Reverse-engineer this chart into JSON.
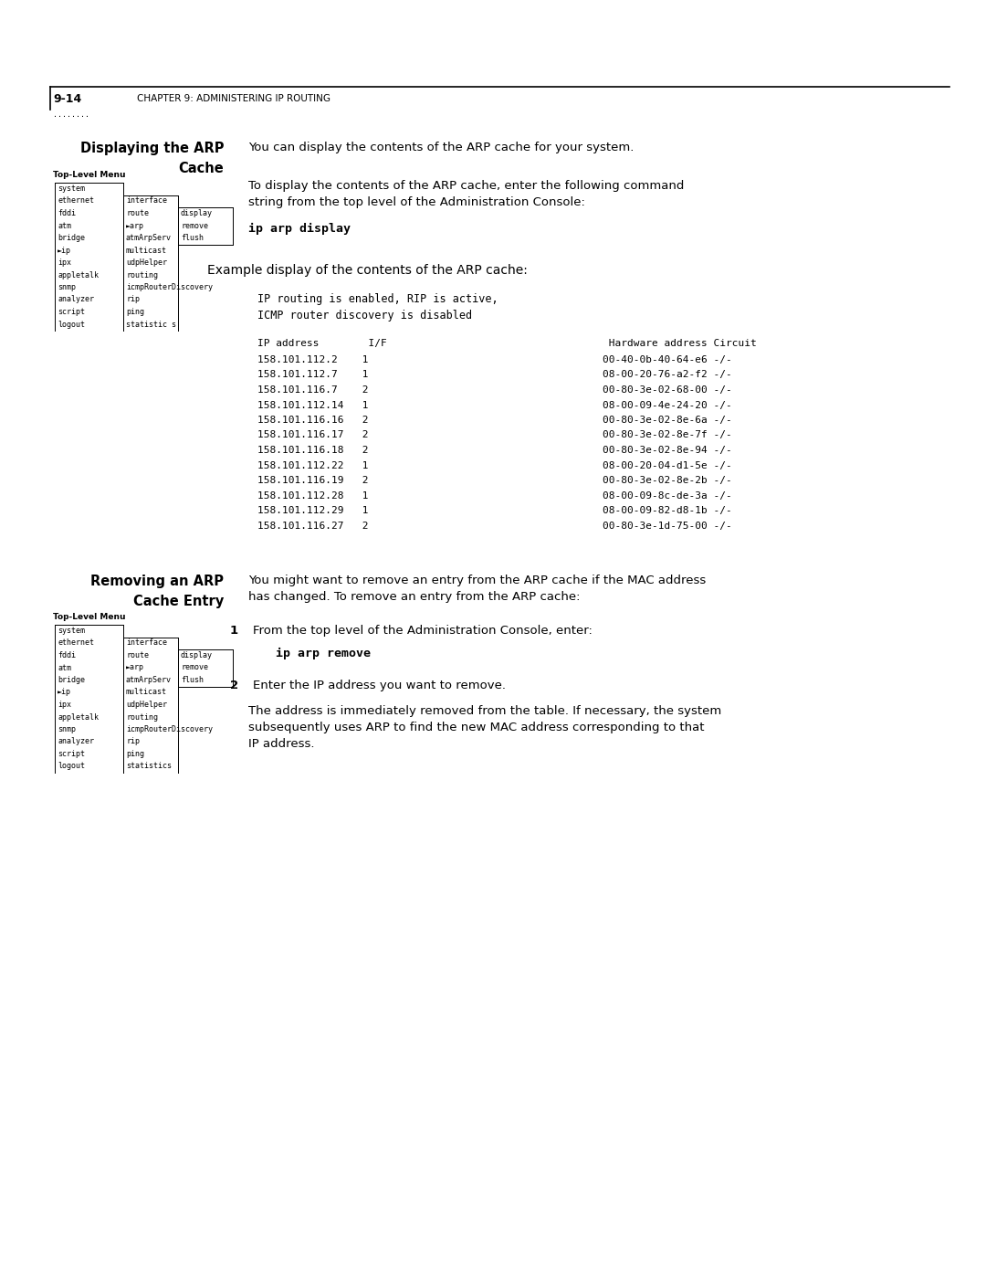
{
  "bg_color": "#ffffff",
  "page_width": 10.8,
  "page_height": 13.97,
  "header_page_num": "9-14",
  "header_chapter": "CHAPTER 9: ADMINISTERING IP ROUTING",
  "section1_heading_line1": "Displaying the ARP",
  "section1_heading_line2": "Cache",
  "section1_para1": "You can display the contents of the ARP cache for your system.",
  "section1_para2_line1": "To display the contents of the ARP cache, enter the following command",
  "section1_para2_line2": "string from the top level of the Administration Console:",
  "section1_command": "ip arp display",
  "section1_example_heading": "Example display of the contents of the ARP cache:",
  "menu1_label": "Top-Level Menu",
  "menu1_col1": [
    "system",
    "ethernet",
    "fddi",
    "atm",
    "bridge",
    "►ip",
    "ipx",
    "appletalk",
    "snmp",
    "analyzer",
    "script",
    "logout"
  ],
  "menu1_col2": [
    "interface",
    "route",
    "►arp",
    "atmArpServ",
    "multicast",
    "udpHelper",
    "routing",
    "icmpRouterDiscovery",
    "rip",
    "ping",
    "statistic s"
  ],
  "menu1_col3": [
    "display",
    "remove",
    "flush"
  ],
  "arp_output_line1": "IP routing is enabled, RIP is active,",
  "arp_output_line2": "ICMP router discovery is disabled",
  "arp_table_header": "IP address        I/F                                    Hardware address Circuit",
  "arp_table_rows": [
    "158.101.112.2    1                                      00-40-0b-40-64-e6 -/-",
    "158.101.112.7    1                                      08-00-20-76-a2-f2 -/-",
    "158.101.116.7    2                                      00-80-3e-02-68-00 -/-",
    "158.101.112.14   1                                      08-00-09-4e-24-20 -/-",
    "158.101.116.16   2                                      00-80-3e-02-8e-6a -/-",
    "158.101.116.17   2                                      00-80-3e-02-8e-7f -/-",
    "158.101.116.18   2                                      00-80-3e-02-8e-94 -/-",
    "158.101.112.22   1                                      08-00-20-04-d1-5e -/-",
    "158.101.116.19   2                                      00-80-3e-02-8e-2b -/-",
    "158.101.112.28   1                                      08-00-09-8c-de-3a -/-",
    "158.101.112.29   1                                      08-00-09-82-d8-1b -/-",
    "158.101.116.27   2                                      00-80-3e-1d-75-00 -/-"
  ],
  "section2_heading_line1": "Removing an ARP",
  "section2_heading_line2": "Cache Entry",
  "section2_para1_line1": "You might want to remove an entry from the ARP cache if the MAC address",
  "section2_para1_line2": "has changed. To remove an entry from the ARP cache:",
  "section2_step1_label": "1",
  "section2_step1_text": "From the top level of the Administration Console, enter:",
  "section2_command": "ip arp remove",
  "section2_step2_label": "2",
  "section2_step2_text": "Enter the IP address you want to remove.",
  "section2_para2_line1": "The address is immediately removed from the table. If necessary, the system",
  "section2_para2_line2": "subsequently uses ARP to find the new MAC address corresponding to that",
  "section2_para2_line3": "IP address.",
  "menu2_label": "Top-Level Menu",
  "menu2_col1": [
    "system",
    "ethernet",
    "fddi",
    "atm",
    "bridge",
    "►ip",
    "ipx",
    "appletalk",
    "snmp",
    "analyzer",
    "script",
    "logout"
  ],
  "menu2_col2": [
    "interface",
    "route",
    "►arp",
    "atmArpServ",
    "multicast",
    "udpHelper",
    "routing",
    "icmpRouterDiscovery",
    "rip",
    "ping",
    "statistics"
  ],
  "menu2_col3": [
    "display",
    "remove",
    "flush"
  ]
}
